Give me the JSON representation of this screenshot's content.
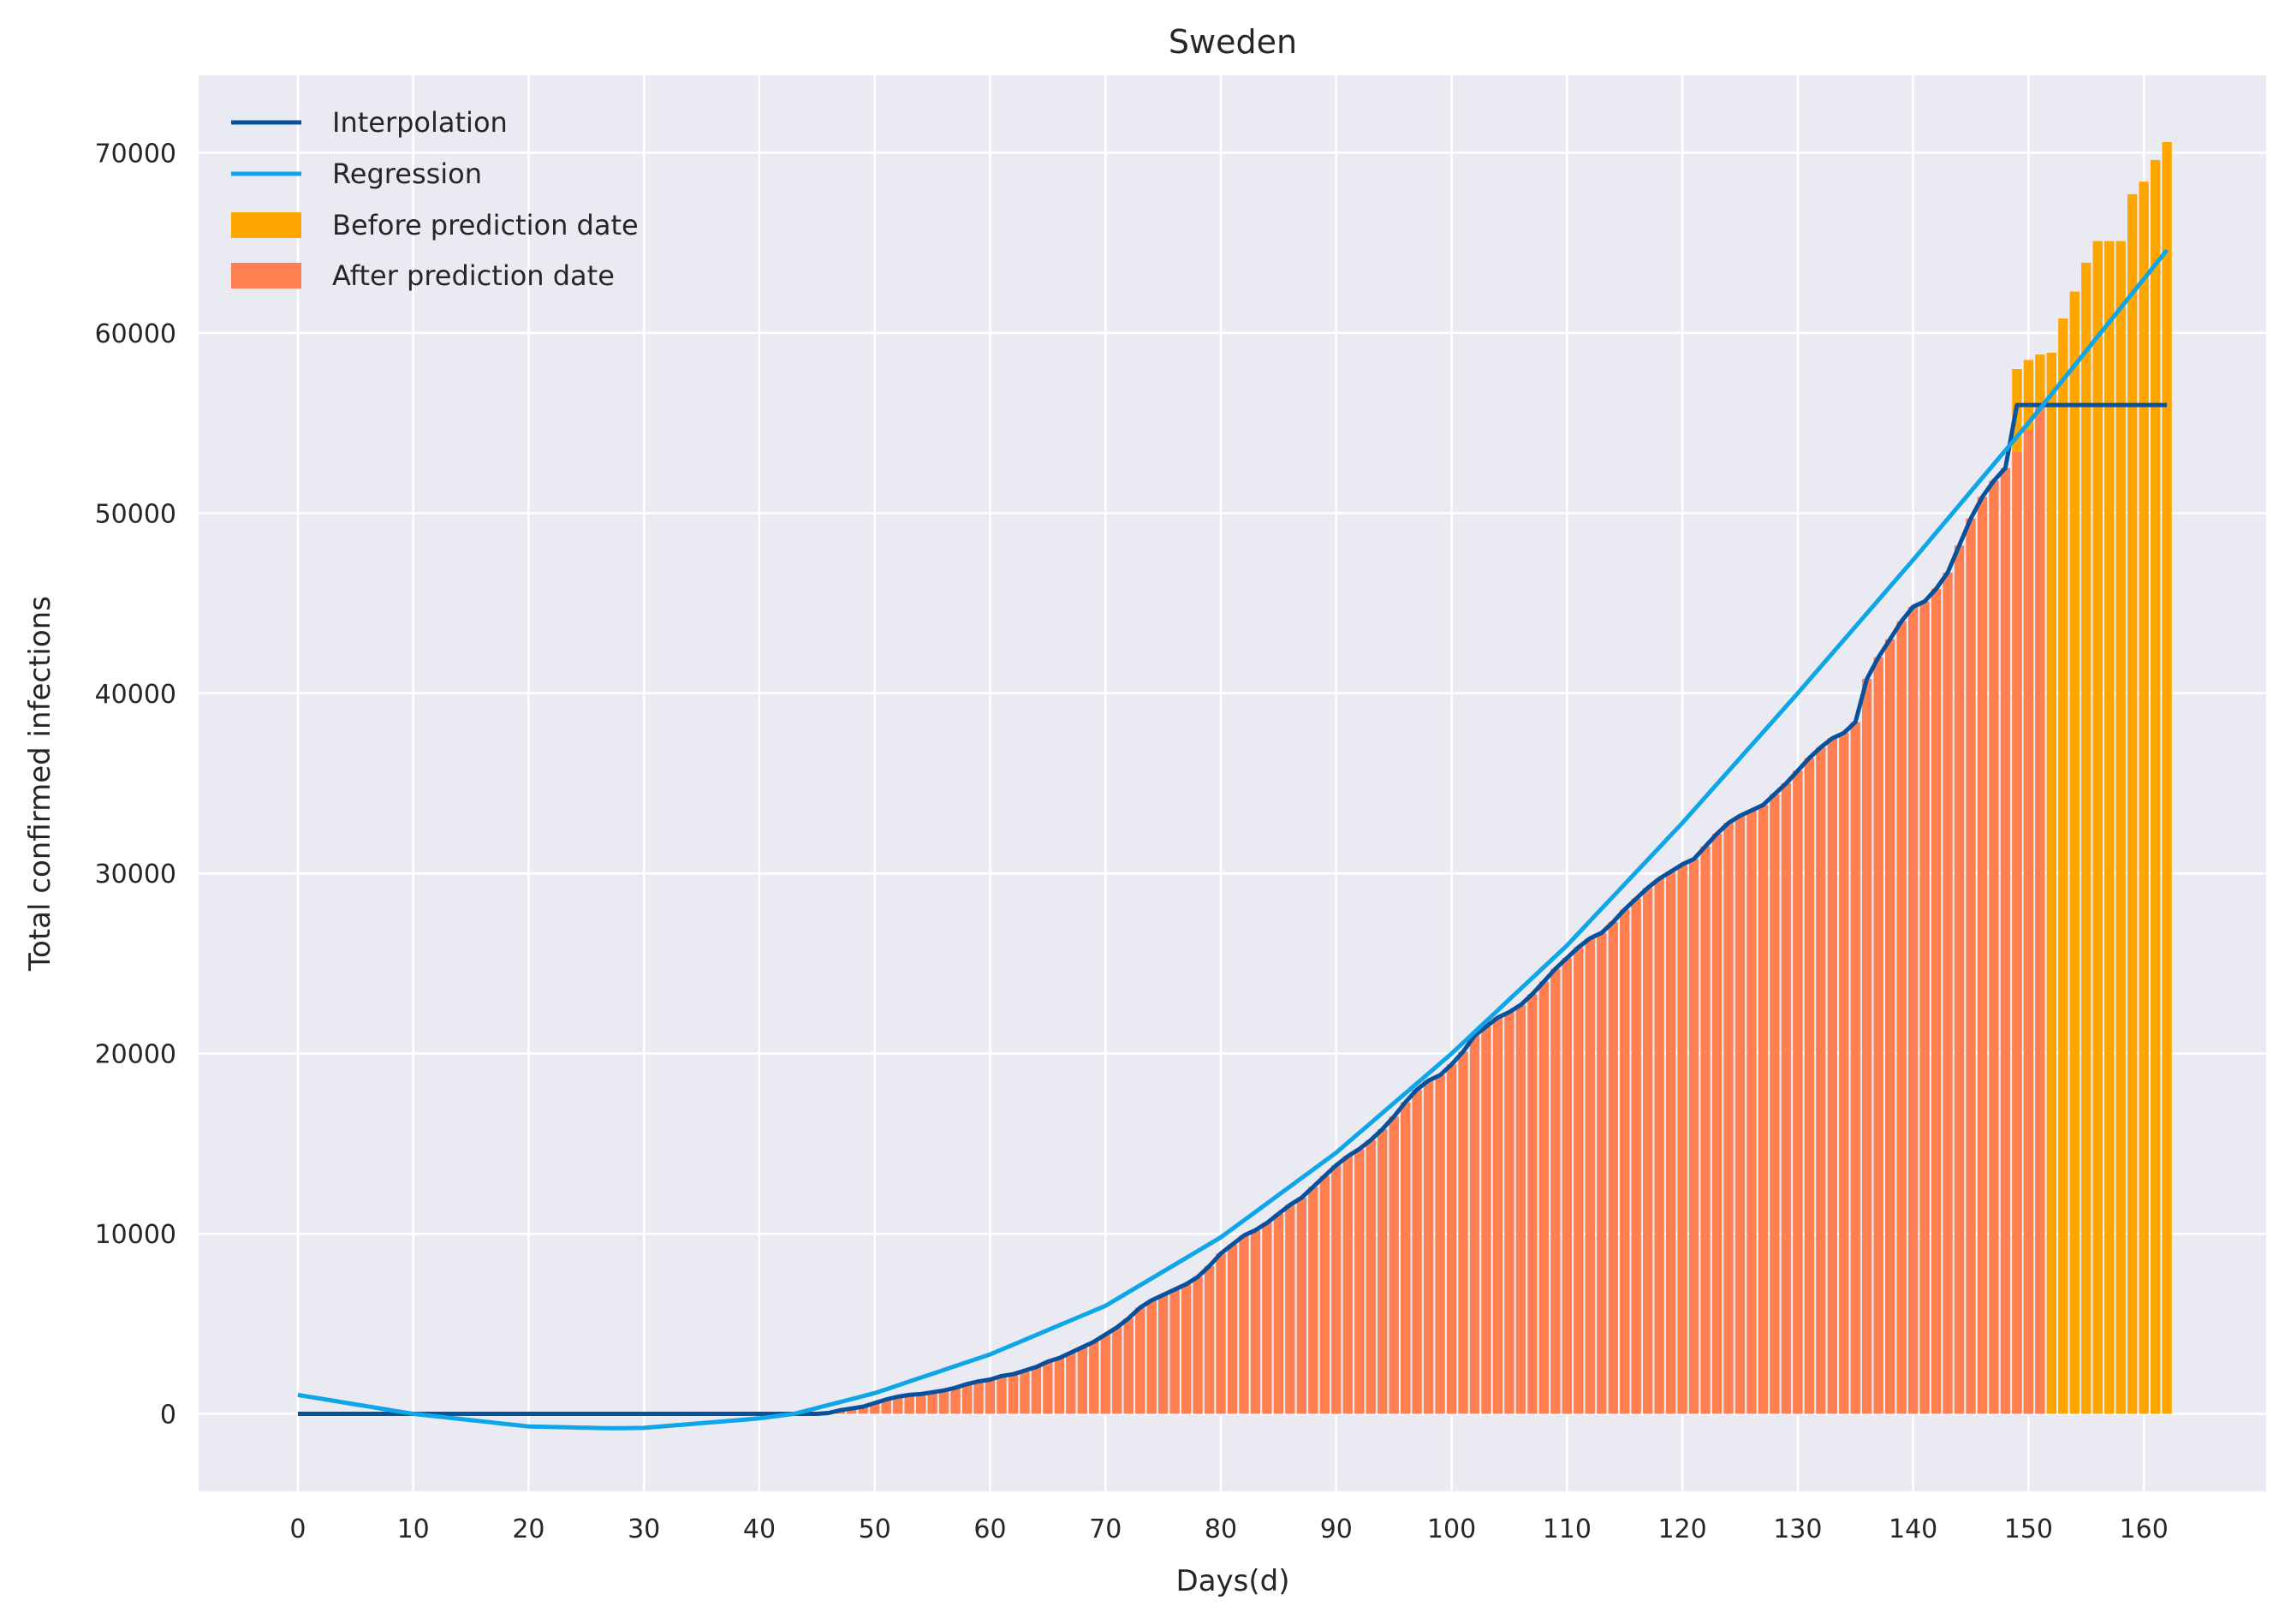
{
  "chart_data": {
    "type": "bar",
    "title": "Sweden",
    "xlabel": "Days(d)",
    "ylabel": "Total confirmed infections",
    "xlim": [
      -8.6,
      170.6
    ],
    "ylim": [
      -4300,
      74300
    ],
    "xticks": [
      0,
      10,
      20,
      30,
      40,
      50,
      60,
      70,
      80,
      90,
      100,
      110,
      120,
      130,
      140,
      150,
      160
    ],
    "yticks": [
      0,
      10000,
      20000,
      30000,
      40000,
      50000,
      60000,
      70000
    ],
    "grid": true,
    "legend_position": "top-left",
    "colors": {
      "background": "#eaeaf2",
      "grid": "#ffffff",
      "interpolation": "#08519c",
      "regression": "#0ea5e9",
      "before_prediction": "#ffa500",
      "after_prediction": "#ff7f50"
    },
    "legend": [
      "Interpolation",
      "Regression",
      "Before prediction date",
      "After prediction date"
    ],
    "series": [
      {
        "name": "Before prediction date",
        "kind": "bar",
        "x": [
          149,
          150,
          151,
          152,
          153,
          154,
          155,
          156,
          157,
          158,
          159,
          160,
          161,
          162
        ],
        "values": [
          58000,
          58500,
          58800,
          58900,
          60800,
          62300,
          63900,
          65100,
          65100,
          65100,
          67700,
          68400,
          69600,
          70600
        ]
      },
      {
        "name": "After prediction date",
        "kind": "bar",
        "x_start": 46,
        "values": [
          50,
          200,
          300,
          400,
          600,
          800,
          950,
          1050,
          1100,
          1200,
          1300,
          1450,
          1650,
          1800,
          1900,
          2100,
          2200,
          2400,
          2600,
          2900,
          3100,
          3400,
          3700,
          4000,
          4400,
          4800,
          5300,
          5900,
          6300,
          6600,
          6900,
          7200,
          7600,
          8200,
          8900,
          9400,
          9900,
          10200,
          10600,
          11100,
          11600,
          12000,
          12600,
          13200,
          13800,
          14300,
          14700,
          15200,
          15800,
          16500,
          17300,
          18000,
          18500,
          18800,
          19400,
          20100,
          21000,
          21500,
          22000,
          22300,
          22700,
          23300,
          24000,
          24700,
          25300,
          25900,
          26400,
          26700,
          27300,
          28000,
          28600,
          29200,
          29700,
          30100,
          30500,
          30800,
          31500,
          32200,
          32800,
          33200,
          33500,
          33800,
          34400,
          35000,
          35700,
          36400,
          37000,
          37500,
          37800,
          38400,
          40800,
          42000,
          43000,
          44000,
          44800,
          45100,
          45800,
          46700,
          48200,
          49700,
          50900,
          51800,
          52500,
          53400,
          54600,
          56000
        ]
      },
      {
        "name": "Interpolation",
        "kind": "line",
        "x_start": 0,
        "flat_until": 45,
        "flat_value": 0,
        "follows_bars_until": 148,
        "plateau_value": 56000,
        "x_end": 162
      },
      {
        "name": "Regression",
        "kind": "line",
        "x": [
          0,
          10,
          20,
          27,
          30,
          40,
          43,
          50,
          60,
          70,
          80,
          90,
          100,
          110,
          120,
          130,
          140,
          150,
          162
        ],
        "values": [
          1050,
          0,
          -700,
          -800,
          -780,
          -250,
          0,
          1150,
          3300,
          6000,
          9800,
          14500,
          20000,
          26000,
          32800,
          40000,
          47400,
          55000,
          64600
        ]
      }
    ]
  }
}
